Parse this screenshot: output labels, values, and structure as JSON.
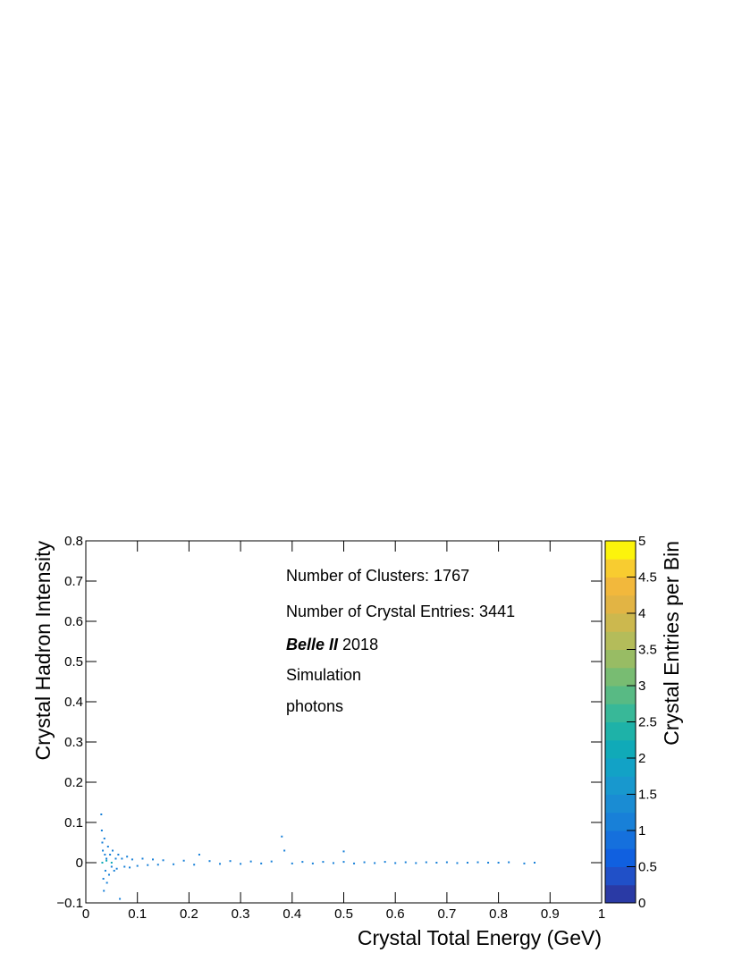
{
  "chart_data": {
    "type": "histogram2d",
    "xlabel": "Crystal Total Energy (GeV)",
    "ylabel": "Crystal Hadron Intensity",
    "zlabel": "Crystal Entries per Bin",
    "annotations": [
      "Number of Clusters: 1767",
      "Number of Crystal Entries: 3441"
    ],
    "experiment": "Belle II",
    "year": "2018",
    "notes": [
      "Simulation",
      "photons"
    ],
    "xlim": [
      0,
      1
    ],
    "xticks": [
      0,
      0.1,
      0.2,
      0.3,
      0.4,
      0.5,
      0.6,
      0.7,
      0.8,
      0.9,
      1
    ],
    "ylim": [
      -0.1,
      0.8
    ],
    "yticks": [
      {
        "value": -0.1,
        "label": "−0.1"
      },
      0,
      0.1,
      0.2,
      0.3,
      0.4,
      0.5,
      0.6,
      0.7,
      0.8
    ],
    "zlim": [
      0,
      5
    ],
    "zticks": [
      0,
      0.5,
      1,
      1.5,
      2,
      2.5,
      3,
      3.5,
      4,
      4.5,
      5
    ],
    "palette": [
      "#2a3aa5",
      "#2050c8",
      "#1060e0",
      "#1570dd",
      "#1880d8",
      "#1a8cd3",
      "#1898ce",
      "#12a2c6",
      "#10aab8",
      "#1eb2a8",
      "#38b898",
      "#58ba84",
      "#78bc72",
      "#98bc64",
      "#b4bc5a",
      "#ccb84e",
      "#e2b444",
      "#f2b83c",
      "#f8cc30",
      "#fcf40c"
    ],
    "x": [
      0.03,
      0.031,
      0.032,
      0.033,
      0.034,
      0.035,
      0.036,
      0.037,
      0.038,
      0.04,
      0.041,
      0.043,
      0.045,
      0.047,
      0.05,
      0.052,
      0.055,
      0.058,
      0.06,
      0.063,
      0.066,
      0.07,
      0.075,
      0.08,
      0.085,
      0.09,
      0.1,
      0.11,
      0.12,
      0.13,
      0.14,
      0.15,
      0.17,
      0.19,
      0.21,
      0.22,
      0.24,
      0.26,
      0.28,
      0.3,
      0.32,
      0.34,
      0.36,
      0.38,
      0.4,
      0.42,
      0.44,
      0.46,
      0.48,
      0.5,
      0.52,
      0.54,
      0.56,
      0.58,
      0.6,
      0.62,
      0.64,
      0.66,
      0.68,
      0.7,
      0.72,
      0.74,
      0.76,
      0.78,
      0.8,
      0.82,
      0.85,
      0.87,
      0.032,
      0.04,
      0.05,
      0.385,
      0.5
    ],
    "y": [
      0.12,
      0.08,
      0.05,
      0.03,
      -0.04,
      -0.07,
      0.06,
      0.02,
      -0.02,
      0.01,
      -0.05,
      0.04,
      -0.03,
      0.02,
      -0.01,
      0.03,
      -0.02,
      0.01,
      -0.015,
      0.02,
      -0.09,
      0.01,
      -0.01,
      0.015,
      -0.012,
      0.008,
      -0.008,
      0.01,
      -0.006,
      0.008,
      -0.005,
      0.006,
      -0.004,
      0.005,
      -0.005,
      0.02,
      0.004,
      -0.003,
      0.004,
      -0.003,
      0.003,
      -0.002,
      0.003,
      0.065,
      -0.002,
      0.002,
      -0.002,
      0.002,
      -0.001,
      0.002,
      -0.002,
      0.001,
      -0.001,
      0.002,
      -0.001,
      0.001,
      -0.001,
      0.001,
      0,
      0.001,
      -0.001,
      0,
      0.001,
      0,
      0,
      0.001,
      -0.002,
      0,
      0,
      0.005,
      0,
      0.03,
      0.028
    ],
    "values": [
      1,
      1,
      1,
      1,
      1,
      1,
      1,
      1,
      1,
      1,
      1,
      1,
      1,
      1,
      1,
      1,
      1,
      1,
      1,
      1,
      1,
      1,
      1,
      1,
      1,
      1,
      1,
      1,
      1,
      1,
      1,
      1,
      1,
      1,
      1,
      1,
      1,
      1,
      1,
      1,
      1,
      1,
      1,
      1,
      1,
      1,
      1,
      1,
      1,
      1,
      1,
      1,
      1,
      1,
      1,
      1,
      1,
      1,
      1,
      1,
      1,
      1,
      1,
      1,
      1,
      1,
      1,
      1,
      2,
      2,
      2,
      1,
      1
    ]
  }
}
